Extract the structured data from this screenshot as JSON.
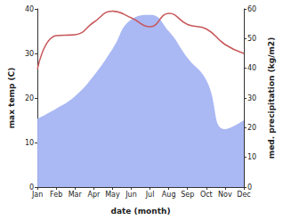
{
  "chart_data": {
    "type": "line",
    "xlabel": "date (month)",
    "ylabel": "max temp (C)",
    "y2label": "med. precipitation (kg/m2)",
    "categories": [
      "Jan",
      "Feb",
      "Mar",
      "Apr",
      "May",
      "Jun",
      "Jul",
      "Aug",
      "Sep",
      "Oct",
      "Nov",
      "Dec"
    ],
    "ylim": [
      0,
      40
    ],
    "yticks": [
      0,
      10,
      20,
      30,
      40
    ],
    "y2lim": [
      0,
      60
    ],
    "y2ticks": [
      0,
      10,
      20,
      30,
      40,
      50,
      60
    ],
    "grid": false,
    "series": [
      {
        "type": "area",
        "axis": "y2",
        "color": "#aab8f4",
        "values": [
          23,
          26.4,
          30.6,
          37.5,
          46.5,
          56.4,
          58,
          52.5,
          43.5,
          36,
          19.5,
          22.5
        ]
      },
      {
        "type": "line",
        "axis": "y",
        "color": "#c8575a",
        "values": [
          26.5,
          34,
          34.2,
          37,
          39.5,
          38,
          36,
          39,
          36.5,
          35.5,
          32,
          30
        ]
      }
    ]
  }
}
